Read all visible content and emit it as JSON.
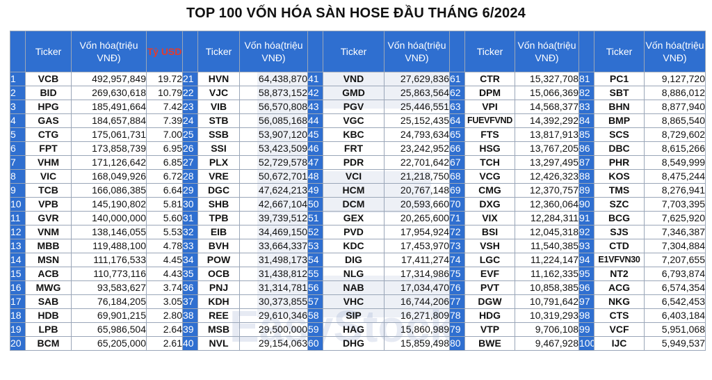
{
  "title": "TOP 100 VỐN HÓA SÀN HOSE ĐẦU THÁNG 6/2024",
  "headers": {
    "ticker": "Ticker",
    "cap_first": "Vốn hóa(triệu VNĐ)",
    "usd": "Tỷ USD",
    "cap": "Vốn hóa(triệu VNĐ)"
  },
  "watermark": "EasyStock",
  "rows": [
    {
      "n": "1",
      "t": "VCB",
      "c": "492,957,849",
      "u": "19.72"
    },
    {
      "n": "2",
      "t": "BID",
      "c": "269,630,618",
      "u": "10.79"
    },
    {
      "n": "3",
      "t": "HPG",
      "c": "185,491,664",
      "u": "7.42"
    },
    {
      "n": "4",
      "t": "GAS",
      "c": "184,657,884",
      "u": "7.39"
    },
    {
      "n": "5",
      "t": "CTG",
      "c": "175,061,731",
      "u": "7.00"
    },
    {
      "n": "6",
      "t": "FPT",
      "c": "173,858,739",
      "u": "6.95"
    },
    {
      "n": "7",
      "t": "VHM",
      "c": "171,126,642",
      "u": "6.85"
    },
    {
      "n": "8",
      "t": "VIC",
      "c": "168,049,926",
      "u": "6.72"
    },
    {
      "n": "9",
      "t": "TCB",
      "c": "166,086,385",
      "u": "6.64"
    },
    {
      "n": "10",
      "t": "VPB",
      "c": "145,190,802",
      "u": "5.81"
    },
    {
      "n": "11",
      "t": "GVR",
      "c": "140,000,000",
      "u": "5.60"
    },
    {
      "n": "12",
      "t": "VNM",
      "c": "138,146,055",
      "u": "5.53"
    },
    {
      "n": "13",
      "t": "MBB",
      "c": "119,488,100",
      "u": "4.78"
    },
    {
      "n": "14",
      "t": "MSN",
      "c": "111,176,533",
      "u": "4.45"
    },
    {
      "n": "15",
      "t": "ACB",
      "c": "110,773,116",
      "u": "4.43"
    },
    {
      "n": "16",
      "t": "MWG",
      "c": "93,583,627",
      "u": "3.74"
    },
    {
      "n": "17",
      "t": "SAB",
      "c": "76,184,205",
      "u": "3.05"
    },
    {
      "n": "18",
      "t": "HDB",
      "c": "69,901,215",
      "u": "2.80"
    },
    {
      "n": "19",
      "t": "LPB",
      "c": "65,986,504",
      "u": "2.64"
    },
    {
      "n": "20",
      "t": "BCM",
      "c": "65,205,000",
      "u": "2.61"
    },
    {
      "n": "21",
      "t": "HVN",
      "c": "64,438,870"
    },
    {
      "n": "22",
      "t": "VJC",
      "c": "58,873,152"
    },
    {
      "n": "23",
      "t": "VIB",
      "c": "56,570,808"
    },
    {
      "n": "24",
      "t": "STB",
      "c": "56,085,168"
    },
    {
      "n": "25",
      "t": "SSB",
      "c": "53,907,120"
    },
    {
      "n": "26",
      "t": "SSI",
      "c": "53,423,509"
    },
    {
      "n": "27",
      "t": "PLX",
      "c": "52,729,578"
    },
    {
      "n": "28",
      "t": "VRE",
      "c": "50,672,701"
    },
    {
      "n": "29",
      "t": "DGC",
      "c": "47,624,213"
    },
    {
      "n": "30",
      "t": "SHB",
      "c": "42,667,104"
    },
    {
      "n": "31",
      "t": "TPB",
      "c": "39,739,512"
    },
    {
      "n": "32",
      "t": "EIB",
      "c": "34,469,150"
    },
    {
      "n": "33",
      "t": "BVH",
      "c": "33,664,337"
    },
    {
      "n": "34",
      "t": "POW",
      "c": "31,498,173"
    },
    {
      "n": "35",
      "t": "OCB",
      "c": "31,438,812"
    },
    {
      "n": "36",
      "t": "PNJ",
      "c": "31,314,781"
    },
    {
      "n": "37",
      "t": "KDH",
      "c": "30,373,855"
    },
    {
      "n": "38",
      "t": "REE",
      "c": "29,610,346"
    },
    {
      "n": "39",
      "t": "MSB",
      "c": "29,500,000"
    },
    {
      "n": "40",
      "t": "NVL",
      "c": "29,154,063"
    },
    {
      "n": "41",
      "t": "VND",
      "c": "27,629,836"
    },
    {
      "n": "42",
      "t": "GMD",
      "c": "25,863,564"
    },
    {
      "n": "43",
      "t": "PGV",
      "c": "25,446,551"
    },
    {
      "n": "44",
      "t": "VGC",
      "c": "25,152,435"
    },
    {
      "n": "45",
      "t": "KBC",
      "c": "24,793,634"
    },
    {
      "n": "46",
      "t": "FRT",
      "c": "23,242,952"
    },
    {
      "n": "47",
      "t": "PDR",
      "c": "22,701,642"
    },
    {
      "n": "48",
      "t": "VCI",
      "c": "21,218,750"
    },
    {
      "n": "49",
      "t": "HCM",
      "c": "20,767,148"
    },
    {
      "n": "50",
      "t": "DCM",
      "c": "20,593,660"
    },
    {
      "n": "51",
      "t": "GEX",
      "c": "20,265,600"
    },
    {
      "n": "52",
      "t": "PVD",
      "c": "17,954,924"
    },
    {
      "n": "53",
      "t": "KDC",
      "c": "17,453,970"
    },
    {
      "n": "54",
      "t": "DIG",
      "c": "17,411,274"
    },
    {
      "n": "55",
      "t": "NLG",
      "c": "17,314,986"
    },
    {
      "n": "56",
      "t": "NAB",
      "c": "17,034,470"
    },
    {
      "n": "57",
      "t": "VHC",
      "c": "16,744,206"
    },
    {
      "n": "58",
      "t": "SIP",
      "c": "16,271,809"
    },
    {
      "n": "59",
      "t": "HAG",
      "c": "15,860,989"
    },
    {
      "n": "60",
      "t": "DHG",
      "c": "15,859,498"
    },
    {
      "n": "61",
      "t": "CTR",
      "c": "15,327,708"
    },
    {
      "n": "62",
      "t": "DPM",
      "c": "15,066,369"
    },
    {
      "n": "63",
      "t": "VPI",
      "c": "14,568,377"
    },
    {
      "n": "64",
      "t": "FUEVFVND",
      "c": "14,392,292"
    },
    {
      "n": "65",
      "t": "FTS",
      "c": "13,817,913"
    },
    {
      "n": "66",
      "t": "HSG",
      "c": "13,767,205"
    },
    {
      "n": "67",
      "t": "TCH",
      "c": "13,297,495"
    },
    {
      "n": "68",
      "t": "VCG",
      "c": "12,426,323"
    },
    {
      "n": "69",
      "t": "CMG",
      "c": "12,370,757"
    },
    {
      "n": "70",
      "t": "DXG",
      "c": "12,360,064"
    },
    {
      "n": "71",
      "t": "VIX",
      "c": "12,284,311"
    },
    {
      "n": "72",
      "t": "BSI",
      "c": "12,045,318"
    },
    {
      "n": "73",
      "t": "VSH",
      "c": "11,540,385"
    },
    {
      "n": "74",
      "t": "LGC",
      "c": "11,224,147"
    },
    {
      "n": "75",
      "t": "EVF",
      "c": "11,162,335"
    },
    {
      "n": "76",
      "t": "PVT",
      "c": "10,858,385"
    },
    {
      "n": "77",
      "t": "DGW",
      "c": "10,791,642"
    },
    {
      "n": "78",
      "t": "HDG",
      "c": "10,319,293"
    },
    {
      "n": "79",
      "t": "VTP",
      "c": "9,706,108"
    },
    {
      "n": "80",
      "t": "BWE",
      "c": "9,467,928"
    },
    {
      "n": "81",
      "t": "PC1",
      "c": "9,127,720"
    },
    {
      "n": "82",
      "t": "SBT",
      "c": "8,886,012"
    },
    {
      "n": "83",
      "t": "BHN",
      "c": "8,877,940"
    },
    {
      "n": "84",
      "t": "BMP",
      "c": "8,865,540"
    },
    {
      "n": "85",
      "t": "SCS",
      "c": "8,729,602"
    },
    {
      "n": "86",
      "t": "DBC",
      "c": "8,615,266"
    },
    {
      "n": "87",
      "t": "PHR",
      "c": "8,549,999"
    },
    {
      "n": "88",
      "t": "KOS",
      "c": "8,475,244"
    },
    {
      "n": "89",
      "t": "TMS",
      "c": "8,276,941"
    },
    {
      "n": "90",
      "t": "SZC",
      "c": "7,703,395"
    },
    {
      "n": "91",
      "t": "BCG",
      "c": "7,625,920"
    },
    {
      "n": "92",
      "t": "SJS",
      "c": "7,346,387"
    },
    {
      "n": "93",
      "t": "CTD",
      "c": "7,304,884"
    },
    {
      "n": "94",
      "t": "E1VFVN30",
      "c": "7,207,655"
    },
    {
      "n": "95",
      "t": "NT2",
      "c": "6,793,874"
    },
    {
      "n": "96",
      "t": "ACG",
      "c": "6,574,354"
    },
    {
      "n": "97",
      "t": "NKG",
      "c": "6,542,453"
    },
    {
      "n": "98",
      "t": "CTS",
      "c": "6,403,184"
    },
    {
      "n": "99",
      "t": "VCF",
      "c": "5,951,068"
    },
    {
      "n": "100",
      "t": "IJC",
      "c": "5,949,537"
    }
  ]
}
